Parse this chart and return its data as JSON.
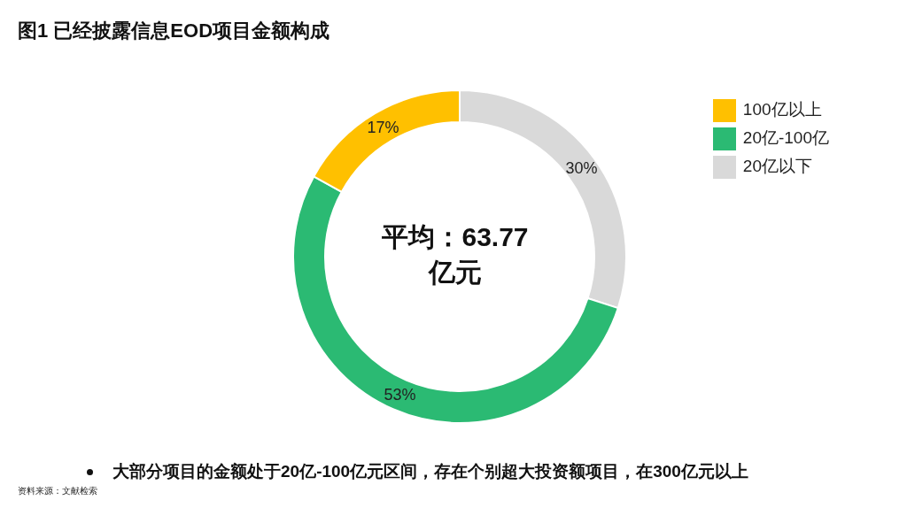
{
  "chart_data": {
    "type": "donut",
    "title": "图1  已经披露信息EOD项目金额构成",
    "categories": [
      "20亿以下",
      "20亿-100亿",
      "100亿以上"
    ],
    "values": [
      30,
      53,
      17
    ],
    "value_labels": [
      "30%",
      "53%",
      "17%"
    ],
    "colors": [
      "#d9d9d9",
      "#2bba73",
      "#ffc000"
    ],
    "legend": "top right",
    "annotations": [
      "平均：63.77\n亿元",
      "大部分项目的金额处于20亿-100亿元区间，存在个别超大投资额项目，在300亿元以上",
      "资料来源：文献检索"
    ]
  }
}
